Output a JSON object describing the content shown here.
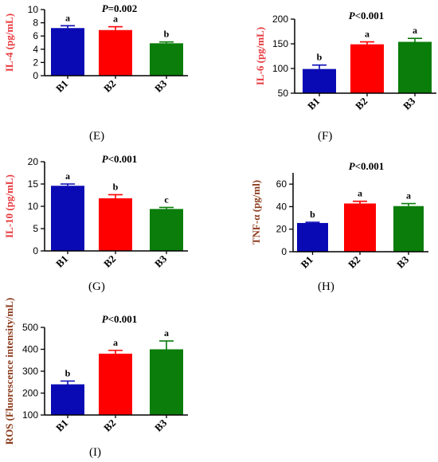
{
  "colors": {
    "B1": "#0a0ab4",
    "B2": "#ff0000",
    "B3": "#0a7d0a",
    "ylabel_red": "#e8383d",
    "ylabel_brown": "#8c3c1e",
    "axis": "#000000"
  },
  "chart_data": [
    {
      "id": "E",
      "type": "bar",
      "caption": "(E)",
      "title": "P=0.002",
      "title_italic_part": "P",
      "title_rest": "=0.002",
      "ylabel": "IL-4  (pg/mL)",
      "categories": [
        "B1",
        "B2",
        "B3"
      ],
      "values": [
        7.2,
        6.9,
        4.9
      ],
      "errors": [
        0.35,
        0.5,
        0.2
      ],
      "letters": [
        "a",
        "a",
        "b"
      ],
      "ylim": [
        0,
        10
      ],
      "yticks": [
        0,
        2,
        4,
        6,
        8,
        10
      ],
      "yticklabels": [
        "0",
        "2",
        "4",
        "6",
        "8",
        "10"
      ]
    },
    {
      "id": "F",
      "type": "bar",
      "caption": "(F)",
      "title": "P<0.001",
      "title_italic_part": "P",
      "title_rest": "<0.001",
      "ylabel": "IL-6  (pg/mL)",
      "categories": [
        "B1",
        "B2",
        "B3"
      ],
      "values": [
        99,
        149,
        154
      ],
      "errors": [
        8,
        5,
        7
      ],
      "letters": [
        "b",
        "a",
        "a"
      ],
      "ylim": [
        50,
        200
      ],
      "yticks": [
        50,
        100,
        150,
        200
      ],
      "yticklabels": [
        "50",
        "100",
        "150",
        "200"
      ]
    },
    {
      "id": "G",
      "type": "bar",
      "caption": "(G)",
      "title": "P<0.001",
      "title_italic_part": "P",
      "title_rest": "<0.001",
      "ylabel": "IL-10  (pg/mL)",
      "categories": [
        "B1",
        "B2",
        "B3"
      ],
      "values": [
        14.6,
        11.8,
        9.4
      ],
      "errors": [
        0.4,
        0.8,
        0.35
      ],
      "letters": [
        "a",
        "b",
        "c"
      ],
      "ylim": [
        0,
        20
      ],
      "yticks": [
        0,
        5,
        10,
        15,
        20
      ],
      "yticklabels": [
        "0",
        "5",
        "10",
        "15",
        "20"
      ]
    },
    {
      "id": "H",
      "type": "bar",
      "caption": "(H)",
      "title": "P<0.001",
      "title_italic_part": "P",
      "title_rest": "<0.001",
      "ylabel": "TNF-α (pg/ml)",
      "categories": [
        "B1",
        "B2",
        "B3"
      ],
      "values": [
        25.5,
        42.8,
        40.5
      ],
      "errors": [
        0.6,
        2.0,
        2.2
      ],
      "letters": [
        "b",
        "a",
        "a"
      ],
      "ylim": [
        0,
        70
      ],
      "yticks": [
        0,
        20,
        40,
        60
      ],
      "yticklabels": [
        "0",
        "20",
        "40",
        "60"
      ]
    },
    {
      "id": "I",
      "type": "bar",
      "caption": "(I)",
      "title": "P<0.001",
      "title_italic_part": "P",
      "title_rest": "<0.001",
      "ylabel": "ROS (Fluorescence intensity/mL)",
      "categories": [
        "B1",
        "B2",
        "B3"
      ],
      "values": [
        240,
        380,
        400
      ],
      "errors": [
        15,
        15,
        38
      ],
      "letters": [
        "b",
        "a",
        "a"
      ],
      "ylim": [
        100,
        500
      ],
      "yticks": [
        100,
        200,
        300,
        400,
        500
      ],
      "yticklabels": [
        "100",
        "200",
        "300",
        "400",
        "500"
      ]
    }
  ]
}
